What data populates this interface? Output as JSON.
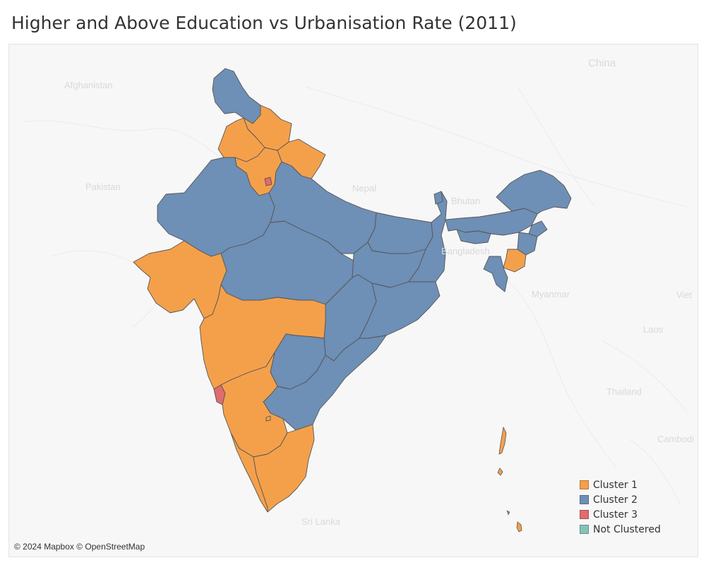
{
  "title": "Higher and Above Education vs Urbanisation Rate (2011)",
  "colors": {
    "cluster_1": "#f4a04b",
    "cluster_2": "#6e8fb6",
    "cluster_3": "#e06c6c",
    "not_clustered": "#86c2b6",
    "border": "#555555",
    "basemap_bg": "#f7f7f7",
    "basemap_label": "#d9d9d9"
  },
  "country_labels": {
    "afghanistan": "Afghanistan",
    "pakistan": "Pakistan",
    "china": "China",
    "nepal": "Nepal",
    "bhutan": "Bhutan",
    "bangladesh": "Bangladesh",
    "myanmar": "Myanmar",
    "laos": "Laos",
    "thailand": "Thailand",
    "cambodia": "Cambodi",
    "vietnam": "Viet",
    "sri_lanka": "Sri Lanka"
  },
  "legend": {
    "items": [
      {
        "label": "Cluster 1",
        "color": "#f4a04b"
      },
      {
        "label": "Cluster 2",
        "color": "#6e8fb6"
      },
      {
        "label": "Cluster 3",
        "color": "#e06c6c"
      },
      {
        "label": "Not Clustered",
        "color": "#86c2b6"
      }
    ]
  },
  "attribution": "© 2024 Mapbox © OpenStreetMap"
}
